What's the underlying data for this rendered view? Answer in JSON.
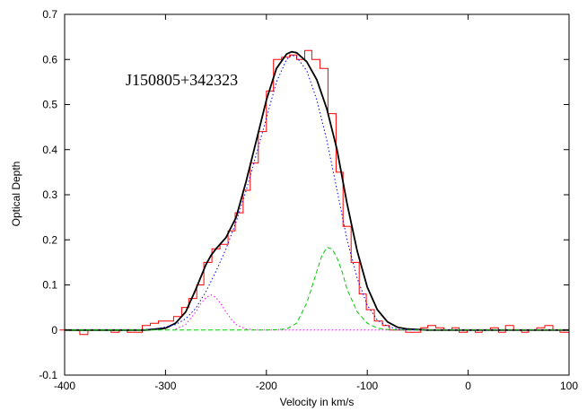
{
  "chart_data": {
    "type": "line",
    "title": "",
    "xlabel": "Velocity in km/s",
    "ylabel": "Optical Depth",
    "xlim": [
      -400,
      100
    ],
    "ylim": [
      -0.1,
      0.7
    ],
    "xticks": [
      -400,
      -300,
      -200,
      -100,
      0,
      100
    ],
    "yticks": [
      -0.1,
      0,
      0.1,
      0.2,
      0.3,
      0.4,
      0.5,
      0.6,
      0.7
    ],
    "xtick_labels": [
      "-400",
      "-300",
      "-200",
      "-100",
      "0",
      "100"
    ],
    "ytick_labels": [
      "-0.1",
      "0",
      "0.1",
      "0.2",
      "0.3",
      "0.4",
      "0.5",
      "0.6",
      "0.7"
    ],
    "annotation": "J150805+342323",
    "grid": false,
    "series": [
      {
        "kind": "step",
        "color": "#ff0000",
        "x": [
          -405,
          -395,
          -385,
          -377,
          -370,
          -361,
          -354,
          -346,
          -338,
          -331,
          -323,
          -315,
          -307,
          -300,
          -292,
          -284,
          -277,
          -269,
          -262,
          -254,
          -246,
          -238,
          -231,
          -223,
          -216,
          -208,
          -200,
          -193,
          -185,
          -177,
          -170,
          -162,
          -155,
          -147,
          -139,
          -131,
          -124,
          -116,
          -108,
          -101,
          -93,
          -85,
          -78,
          -70,
          -62,
          -55,
          -47,
          -40,
          -32,
          -24,
          -16,
          -9,
          -1,
          7,
          14,
          22,
          30,
          37,
          45,
          53,
          60,
          68,
          76,
          84,
          91,
          100
        ],
        "y": [
          0.0,
          0.0,
          -0.01,
          0.0,
          0.0,
          0.0,
          -0.005,
          0.0,
          -0.005,
          -0.005,
          0.01,
          0.015,
          0.02,
          0.02,
          0.03,
          0.05,
          0.07,
          0.1,
          0.15,
          0.18,
          0.19,
          0.22,
          0.26,
          0.31,
          0.37,
          0.44,
          0.53,
          0.6,
          0.605,
          0.61,
          0.6,
          0.62,
          0.6,
          0.58,
          0.48,
          0.35,
          0.23,
          0.15,
          0.08,
          0.045,
          0.02,
          0.01,
          0.0,
          0.0,
          -0.005,
          -0.005,
          0.005,
          0.01,
          0.005,
          0.0,
          0.005,
          -0.005,
          0.0,
          -0.005,
          0.0,
          0.005,
          -0.005,
          0.01,
          0.0,
          -0.005,
          0.0,
          0.005,
          0.01,
          0.0,
          -0.005,
          0.0
        ]
      },
      {
        "kind": "total-fit",
        "color": "#000000",
        "dash": "solid",
        "x": [
          -400,
          -380,
          -360,
          -340,
          -320,
          -300,
          -290,
          -280,
          -270,
          -260,
          -255,
          -250,
          -240,
          -230,
          -220,
          -210,
          -200,
          -190,
          -180,
          -175,
          -170,
          -160,
          -150,
          -140,
          -130,
          -120,
          -110,
          -100,
          -90,
          -80,
          -70,
          -60,
          -40,
          -20,
          0,
          20,
          40,
          60,
          80,
          100
        ],
        "y": [
          0.0,
          0.0,
          0.0,
          0.0,
          0.0,
          0.004,
          0.015,
          0.04,
          0.09,
          0.145,
          0.165,
          0.18,
          0.205,
          0.25,
          0.33,
          0.42,
          0.51,
          0.58,
          0.612,
          0.617,
          0.615,
          0.595,
          0.555,
          0.49,
          0.4,
          0.28,
          0.175,
          0.095,
          0.045,
          0.018,
          0.006,
          0.002,
          0.0,
          0.0,
          0.0,
          0.0,
          0.0,
          0.0,
          0.0,
          0.0
        ]
      },
      {
        "kind": "component",
        "color": "#0000ff",
        "dash": "dotted",
        "x": [
          -330,
          -310,
          -290,
          -280,
          -270,
          -260,
          -250,
          -240,
          -230,
          -220,
          -210,
          -200,
          -190,
          -180,
          -175,
          -170,
          -160,
          -150,
          -140,
          -130,
          -120,
          -110,
          -100,
          -90,
          -80,
          -70,
          -60,
          -50
        ],
        "y": [
          0.0,
          0.002,
          0.012,
          0.025,
          0.048,
          0.085,
          0.13,
          0.18,
          0.24,
          0.31,
          0.39,
          0.47,
          0.55,
          0.6,
          0.61,
          0.605,
          0.575,
          0.51,
          0.42,
          0.31,
          0.2,
          0.115,
          0.055,
          0.022,
          0.008,
          0.002,
          0.0,
          0.0
        ]
      },
      {
        "kind": "component",
        "color": "#ff00ff",
        "dash": "dotted",
        "x": [
          -290,
          -280,
          -270,
          -265,
          -260,
          -255,
          -250,
          -245,
          -240,
          -235,
          -230,
          -220,
          -210,
          -200,
          -150,
          -100,
          -50,
          0,
          50,
          100
        ],
        "y": [
          0.002,
          0.012,
          0.04,
          0.058,
          0.072,
          0.078,
          0.072,
          0.058,
          0.04,
          0.024,
          0.012,
          0.002,
          0.0,
          0.0,
          0.0,
          0.0,
          0.0,
          0.0,
          0.0,
          0.0
        ]
      },
      {
        "kind": "component",
        "color": "#00cc00",
        "dash": "dashed",
        "x": [
          -400,
          -300,
          -200,
          -180,
          -170,
          -160,
          -150,
          -145,
          -140,
          -135,
          -130,
          -125,
          -120,
          -110,
          -100,
          -90,
          -80,
          -70,
          0,
          100
        ],
        "y": [
          0.0,
          0.0,
          0.0,
          0.002,
          0.015,
          0.06,
          0.13,
          0.165,
          0.183,
          0.18,
          0.16,
          0.13,
          0.09,
          0.04,
          0.015,
          0.004,
          0.001,
          0.0,
          0.0,
          0.0
        ]
      }
    ]
  }
}
